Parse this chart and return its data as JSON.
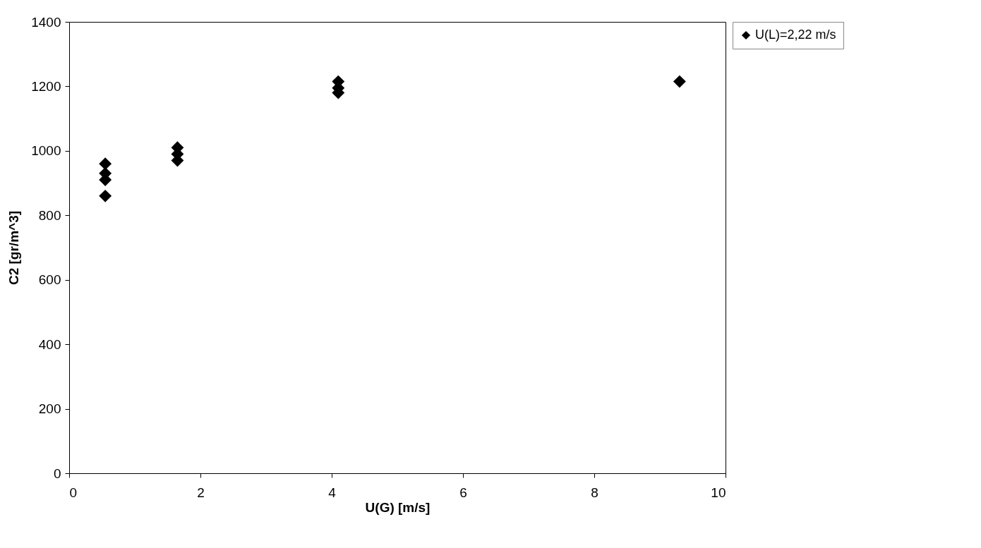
{
  "chart_data": {
    "type": "scatter",
    "xlabel": "U(G) [m/s]",
    "ylabel": "C2 [gr/m^3]",
    "x": [
      0.55,
      0.55,
      0.55,
      0.55,
      1.65,
      1.65,
      1.65,
      4.1,
      4.1,
      4.1,
      9.3
    ],
    "series": [
      {
        "name": "U(L)=2,22 m/s",
        "color": "#000000",
        "values": [
          960,
          930,
          910,
          860,
          1010,
          990,
          970,
          1215,
          1195,
          1180,
          1215
        ]
      }
    ],
    "xlim": [
      0,
      10
    ],
    "xticks": [
      0,
      2,
      4,
      6,
      8,
      10
    ],
    "ylim": [
      0,
      1400
    ],
    "yticks": [
      0,
      200,
      400,
      600,
      800,
      1000,
      1200,
      1400
    ],
    "grid": false,
    "legend": "right",
    "marker": "diamond"
  }
}
